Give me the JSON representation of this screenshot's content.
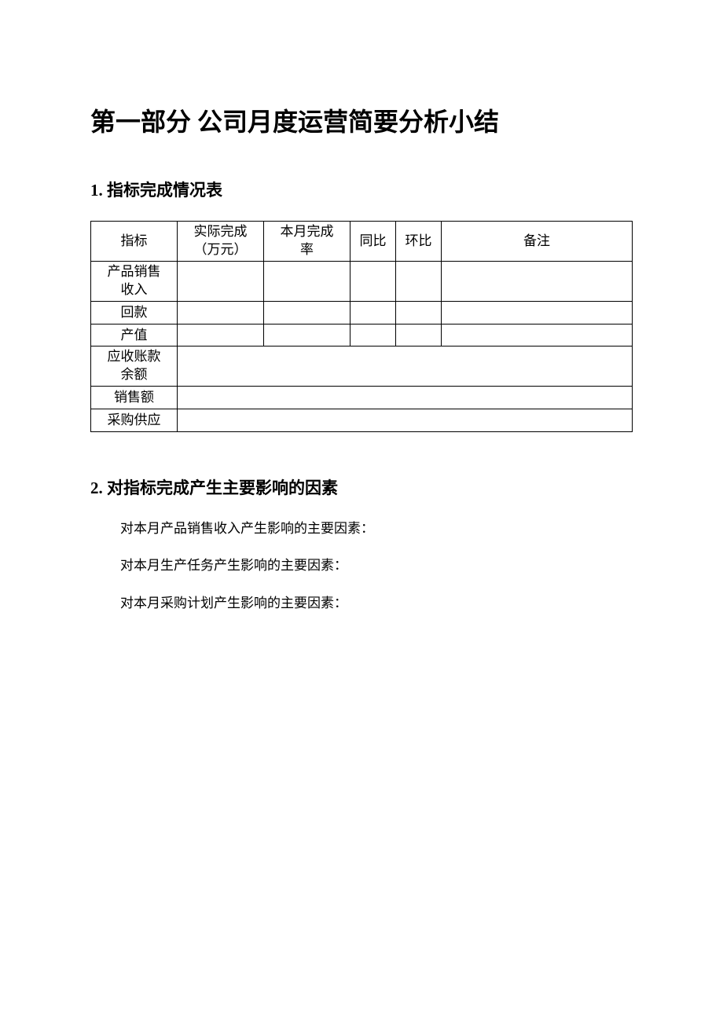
{
  "document": {
    "main_title": "第一部分 公司月度运营简要分析小结",
    "section1": {
      "number": "1.",
      "title": "指标完成情况表",
      "table": {
        "headers": {
          "indicator": "指标",
          "actual_line1": "实际完成",
          "actual_line2": "（万元）",
          "rate_line1": "本月完成",
          "rate_line2": "率",
          "yoy": "同比",
          "mom": "环比",
          "remark": "备注"
        },
        "rows": [
          {
            "indicator_line1": "产品销售",
            "indicator_line2": "收入",
            "two_line": true,
            "merged": false,
            "actual": "",
            "rate": "",
            "yoy": "",
            "mom": "",
            "remark": ""
          },
          {
            "indicator": "回款",
            "two_line": false,
            "merged": false,
            "actual": "",
            "rate": "",
            "yoy": "",
            "mom": "",
            "remark": ""
          },
          {
            "indicator": "产值",
            "two_line": false,
            "merged": false,
            "actual": "",
            "rate": "",
            "yoy": "",
            "mom": "",
            "remark": ""
          },
          {
            "indicator_line1": "应收账款",
            "indicator_line2": "余额",
            "two_line": true,
            "merged": true,
            "rest": ""
          },
          {
            "indicator": "销售额",
            "two_line": false,
            "merged": true,
            "rest": ""
          },
          {
            "indicator": "采购供应",
            "two_line": false,
            "merged": true,
            "rest": ""
          }
        ],
        "column_widths": {
          "indicator": 110,
          "actual": 110,
          "rate": 110,
          "yoy": 58,
          "mom": 58,
          "remark": "auto"
        },
        "border_color": "#000000",
        "font_size": 17
      }
    },
    "section2": {
      "number": "2.",
      "title": "对指标完成产生主要影响的因素",
      "factors": [
        "对本月产品销售收入产生影响的主要因素：",
        "对本月生产任务产生影响的主要因素：",
        "对本月采购计划产生影响的主要因素："
      ]
    },
    "styling": {
      "background_color": "#ffffff",
      "text_color": "#000000",
      "main_title_fontsize": 32,
      "section_title_fontsize": 21,
      "body_fontsize": 17,
      "font_family": "SimSun"
    }
  }
}
